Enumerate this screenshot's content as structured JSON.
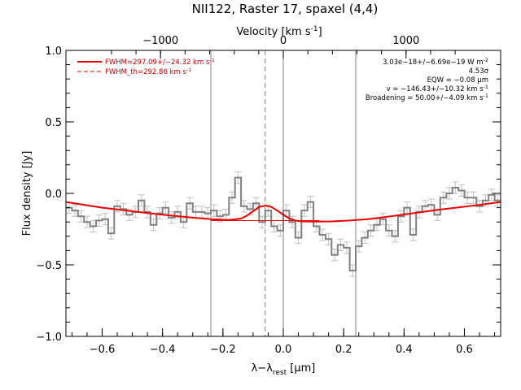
{
  "chart_data": {
    "type": "line",
    "title": "NII122, Raster 17, spaxel (4,4)",
    "xlabel": "λ−λ",
    "xlabel_sub": "rest",
    "xlabel_unit": " [μm]",
    "ylabel": "Flux density [Jy]",
    "top_xlabel": "Velocity [km s",
    "top_xlabel_sup": "-1",
    "top_xlabel_end": "]",
    "xlim": [
      -0.72,
      0.72
    ],
    "ylim": [
      -1.0,
      1.0
    ],
    "x_ticks": [
      -0.6,
      -0.4,
      -0.2,
      0.0,
      0.2,
      0.4,
      0.6
    ],
    "x_tick_labels": [
      "−0.6",
      "−0.4",
      "−0.2",
      "0.0",
      "0.2",
      "0.4",
      "0.6"
    ],
    "y_ticks": [
      -1.0,
      -0.5,
      0.0,
      0.5,
      1.0
    ],
    "y_tick_labels": [
      "−1.0",
      "−0.5",
      "0.0",
      "0.5",
      "1.0"
    ],
    "top_ticks_wave": [
      -0.4066,
      0.0,
      0.4066
    ],
    "top_tick_labels": [
      "−1000",
      "0",
      "1000"
    ],
    "vertical_lines": [
      -0.24,
      0.0,
      0.24
    ],
    "dashed_line": -0.06,
    "colors": {
      "spectrum": "#808080",
      "error_bars": "#c0c0c0",
      "fit": "#ee0000",
      "axes": "#000000",
      "vlines": "#808080"
    },
    "spectrum": {
      "x": [
        -0.72,
        -0.7,
        -0.68,
        -0.66,
        -0.64,
        -0.62,
        -0.6,
        -0.58,
        -0.56,
        -0.54,
        -0.52,
        -0.5,
        -0.48,
        -0.46,
        -0.44,
        -0.42,
        -0.4,
        -0.38,
        -0.36,
        -0.34,
        -0.32,
        -0.3,
        -0.28,
        -0.26,
        -0.24,
        -0.22,
        -0.2,
        -0.18,
        -0.16,
        -0.14,
        -0.12,
        -0.1,
        -0.08,
        -0.06,
        -0.04,
        -0.02,
        0.0,
        0.02,
        0.04,
        0.06,
        0.08,
        0.1,
        0.12,
        0.14,
        0.16,
        0.18,
        0.2,
        0.22,
        0.24,
        0.26,
        0.28,
        0.3,
        0.32,
        0.34,
        0.36,
        0.38,
        0.4,
        0.42,
        0.44,
        0.46,
        0.48,
        0.5,
        0.52,
        0.54,
        0.56,
        0.58,
        0.6,
        0.62,
        0.64,
        0.66,
        0.68,
        0.7
      ],
      "y": [
        -0.1,
        -0.12,
        -0.16,
        -0.2,
        -0.23,
        -0.19,
        -0.18,
        -0.28,
        -0.09,
        -0.11,
        -0.15,
        -0.13,
        -0.05,
        -0.13,
        -0.22,
        -0.14,
        -0.1,
        -0.17,
        -0.13,
        -0.2,
        -0.07,
        -0.13,
        -0.13,
        -0.14,
        -0.12,
        -0.16,
        -0.15,
        -0.03,
        0.11,
        -0.09,
        -0.11,
        -0.07,
        -0.2,
        -0.12,
        -0.23,
        -0.26,
        -0.12,
        -0.2,
        -0.31,
        -0.12,
        -0.06,
        -0.23,
        -0.29,
        -0.32,
        -0.43,
        -0.36,
        -0.38,
        -0.54,
        -0.37,
        -0.31,
        -0.26,
        -0.22,
        -0.18,
        -0.26,
        -0.3,
        -0.16,
        -0.1,
        -0.29,
        -0.13,
        -0.09,
        -0.08,
        -0.15,
        -0.03,
        0.0,
        0.04,
        0.02,
        -0.03,
        -0.03,
        -0.09,
        -0.05,
        -0.01,
        -0.05
      ],
      "err": 0.04
    },
    "fit_model": {
      "x": [
        -0.72,
        -0.66,
        -0.6,
        -0.54,
        -0.48,
        -0.42,
        -0.36,
        -0.3,
        -0.24,
        -0.18,
        -0.14,
        -0.12,
        -0.1,
        -0.08,
        -0.06,
        -0.04,
        -0.02,
        0.0,
        0.02,
        0.04,
        0.06,
        0.1,
        0.16,
        0.22,
        0.28,
        0.34,
        0.4,
        0.46,
        0.52,
        0.58,
        0.64,
        0.72
      ],
      "y": [
        -0.06,
        -0.08,
        -0.1,
        -0.115,
        -0.13,
        -0.145,
        -0.158,
        -0.17,
        -0.18,
        -0.186,
        -0.176,
        -0.155,
        -0.125,
        -0.095,
        -0.085,
        -0.095,
        -0.12,
        -0.15,
        -0.175,
        -0.19,
        -0.196,
        -0.198,
        -0.196,
        -0.19,
        -0.18,
        -0.165,
        -0.148,
        -0.13,
        -0.113,
        -0.098,
        -0.083,
        -0.06
      ]
    },
    "baseline_segment": {
      "x": [
        -0.24,
        0.12
      ],
      "y": [
        -0.19,
        -0.19
      ]
    },
    "legend": [
      {
        "label": "FWHM=297.09+/−24.32 km s",
        "sup": "-1",
        "style": "solid"
      },
      {
        "label": "FWHM_th=292.86 km s",
        "sup": "-1",
        "style": "dashed"
      }
    ],
    "annotations": [
      {
        "text": "3.03e−18+/−6.69e−19 W m",
        "sup": "-2"
      },
      {
        "text": "4.53σ",
        "sup": ""
      },
      {
        "text": "EQW = −0.08 μm",
        "sup": ""
      },
      {
        "text": "v = −146.43+/−10.32 km s",
        "sup": "-1"
      },
      {
        "text": "Broadening = 50.00+/−4.09 km s",
        "sup": "-1"
      }
    ]
  }
}
